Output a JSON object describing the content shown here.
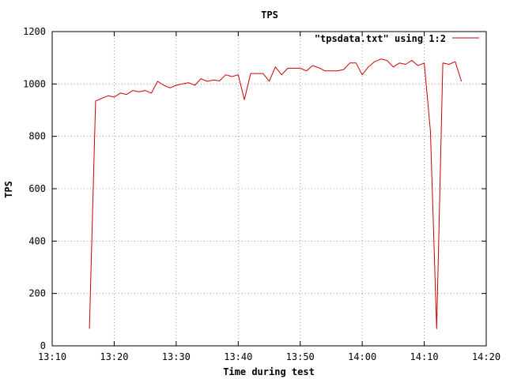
{
  "chart_data": {
    "type": "line",
    "title": "TPS",
    "xlabel": "Time during test",
    "ylabel": "TPS",
    "xlim": [
      "13:10",
      "14:20"
    ],
    "ylim": [
      0,
      1200
    ],
    "x_ticks": [
      "13:10",
      "13:20",
      "13:30",
      "13:40",
      "13:50",
      "14:00",
      "14:10",
      "14:20"
    ],
    "y_ticks": [
      "0",
      "200",
      "400",
      "600",
      "800",
      "1000",
      "1200"
    ],
    "grid": true,
    "legend_position": "top-right",
    "line_color": "#cc0000",
    "series": [
      {
        "name": "\"tpsdata.txt\" using 1:2",
        "x": [
          "13:16:00",
          "13:17:00",
          "13:18:00",
          "13:19:00",
          "13:20:00",
          "13:21:00",
          "13:22:00",
          "13:23:00",
          "13:24:00",
          "13:25:00",
          "13:26:00",
          "13:27:00",
          "13:28:00",
          "13:29:00",
          "13:30:00",
          "13:31:00",
          "13:32:00",
          "13:33:00",
          "13:34:00",
          "13:35:00",
          "13:36:00",
          "13:37:00",
          "13:38:00",
          "13:39:00",
          "13:40:00",
          "13:41:00",
          "13:42:00",
          "13:43:00",
          "13:44:00",
          "13:45:00",
          "13:46:00",
          "13:47:00",
          "13:48:00",
          "13:49:00",
          "13:50:00",
          "13:51:00",
          "13:52:00",
          "13:53:00",
          "13:54:00",
          "13:55:00",
          "13:56:00",
          "13:57:00",
          "13:58:00",
          "13:59:00",
          "14:00:00",
          "14:01:00",
          "14:02:00",
          "14:03:00",
          "14:04:00",
          "14:05:00",
          "14:06:00",
          "14:07:00",
          "14:08:00",
          "14:09:00",
          "14:10:00",
          "14:11:00",
          "14:12:00",
          "14:13:00",
          "14:14:00",
          "14:15:00",
          "14:16:00"
        ],
        "values": [
          65,
          935,
          945,
          955,
          950,
          965,
          960,
          975,
          970,
          975,
          965,
          1010,
          995,
          985,
          995,
          1000,
          1005,
          995,
          1020,
          1010,
          1015,
          1012,
          1035,
          1028,
          1035,
          940,
          1040,
          1040,
          1040,
          1010,
          1065,
          1035,
          1060,
          1060,
          1060,
          1050,
          1070,
          1062,
          1050,
          1050,
          1050,
          1055,
          1080,
          1080,
          1035,
          1065,
          1085,
          1095,
          1090,
          1065,
          1080,
          1075,
          1090,
          1070,
          1080,
          820,
          65,
          1080,
          1075,
          1085,
          1010
        ]
      }
    ]
  }
}
